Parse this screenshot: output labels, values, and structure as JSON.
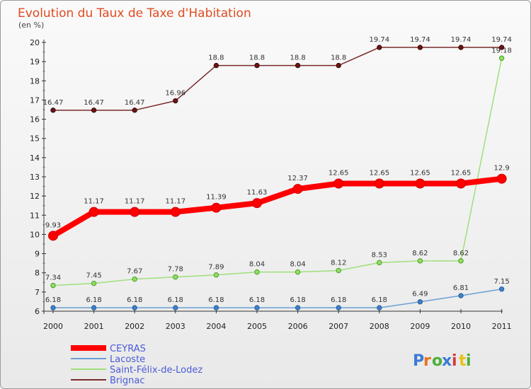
{
  "chart_data": {
    "type": "line",
    "title": "Evolution du Taux de Taxe d'Habitation",
    "subtitle": "(en %)",
    "xlabel": "",
    "ylabel": "",
    "ylim": [
      6,
      20
    ],
    "x": [
      "2000",
      "2001",
      "2002",
      "2003",
      "2004",
      "2005",
      "2006",
      "2007",
      "2008",
      "2009",
      "2010",
      "2011"
    ],
    "y_ticks": [
      6,
      7,
      8,
      9,
      10,
      11,
      12,
      13,
      14,
      15,
      16,
      17,
      18,
      19,
      20
    ],
    "grid": false,
    "legend": "bottom-left",
    "series": [
      {
        "name": "CEYRAS",
        "color": "#ff0000",
        "values": [
          9.93,
          11.17,
          11.17,
          11.17,
          11.39,
          11.63,
          12.37,
          12.65,
          12.65,
          12.65,
          12.65,
          12.9
        ],
        "labels": [
          "9.93",
          "11.17",
          "11.17",
          "11.17",
          "11.39",
          "11.63",
          "12.37",
          "12.65",
          "12.65",
          "12.65",
          "12.65",
          "12.9"
        ]
      },
      {
        "name": "Lacoste",
        "color": "#6a9fd4",
        "values": [
          6.18,
          6.18,
          6.18,
          6.18,
          6.18,
          6.18,
          6.18,
          6.18,
          6.18,
          6.49,
          6.81,
          7.15
        ],
        "labels": [
          "6.18",
          "6.18",
          "6.18",
          "6.18",
          "6.18",
          "6.18",
          "6.18",
          "6.18",
          "6.18",
          "6.49",
          "6.81",
          "7.15"
        ]
      },
      {
        "name": "Saint-Félix-de-Lodez",
        "color": "#9ee07a",
        "values": [
          7.34,
          7.45,
          7.67,
          7.78,
          7.89,
          8.04,
          8.04,
          8.12,
          8.53,
          8.62,
          8.62,
          19.18
        ],
        "labels": [
          "7.34",
          "7.45",
          "7.67",
          "7.78",
          "7.89",
          "8.04",
          "8.04",
          "8.12",
          "8.53",
          "8.62",
          "8.62",
          "19.18"
        ]
      },
      {
        "name": "Brignac",
        "color": "#7a2a2a",
        "values": [
          16.47,
          16.47,
          16.47,
          16.96,
          18.8,
          18.8,
          18.8,
          18.8,
          19.74,
          19.74,
          19.74,
          19.74
        ],
        "labels": [
          "16.47",
          "16.47",
          "16.47",
          "16.96",
          "18.8",
          "18.8",
          "18.8",
          "18.8",
          "19.74",
          "19.74",
          "19.74",
          "19.74"
        ]
      }
    ]
  },
  "logo": {
    "text": "Proxiti",
    "colors": [
      "#3b7bd4",
      "#e8731a",
      "#4cae3c",
      "#3b7bd4",
      "#d43b3b",
      "#e8c21a",
      "#4cae3c"
    ]
  }
}
